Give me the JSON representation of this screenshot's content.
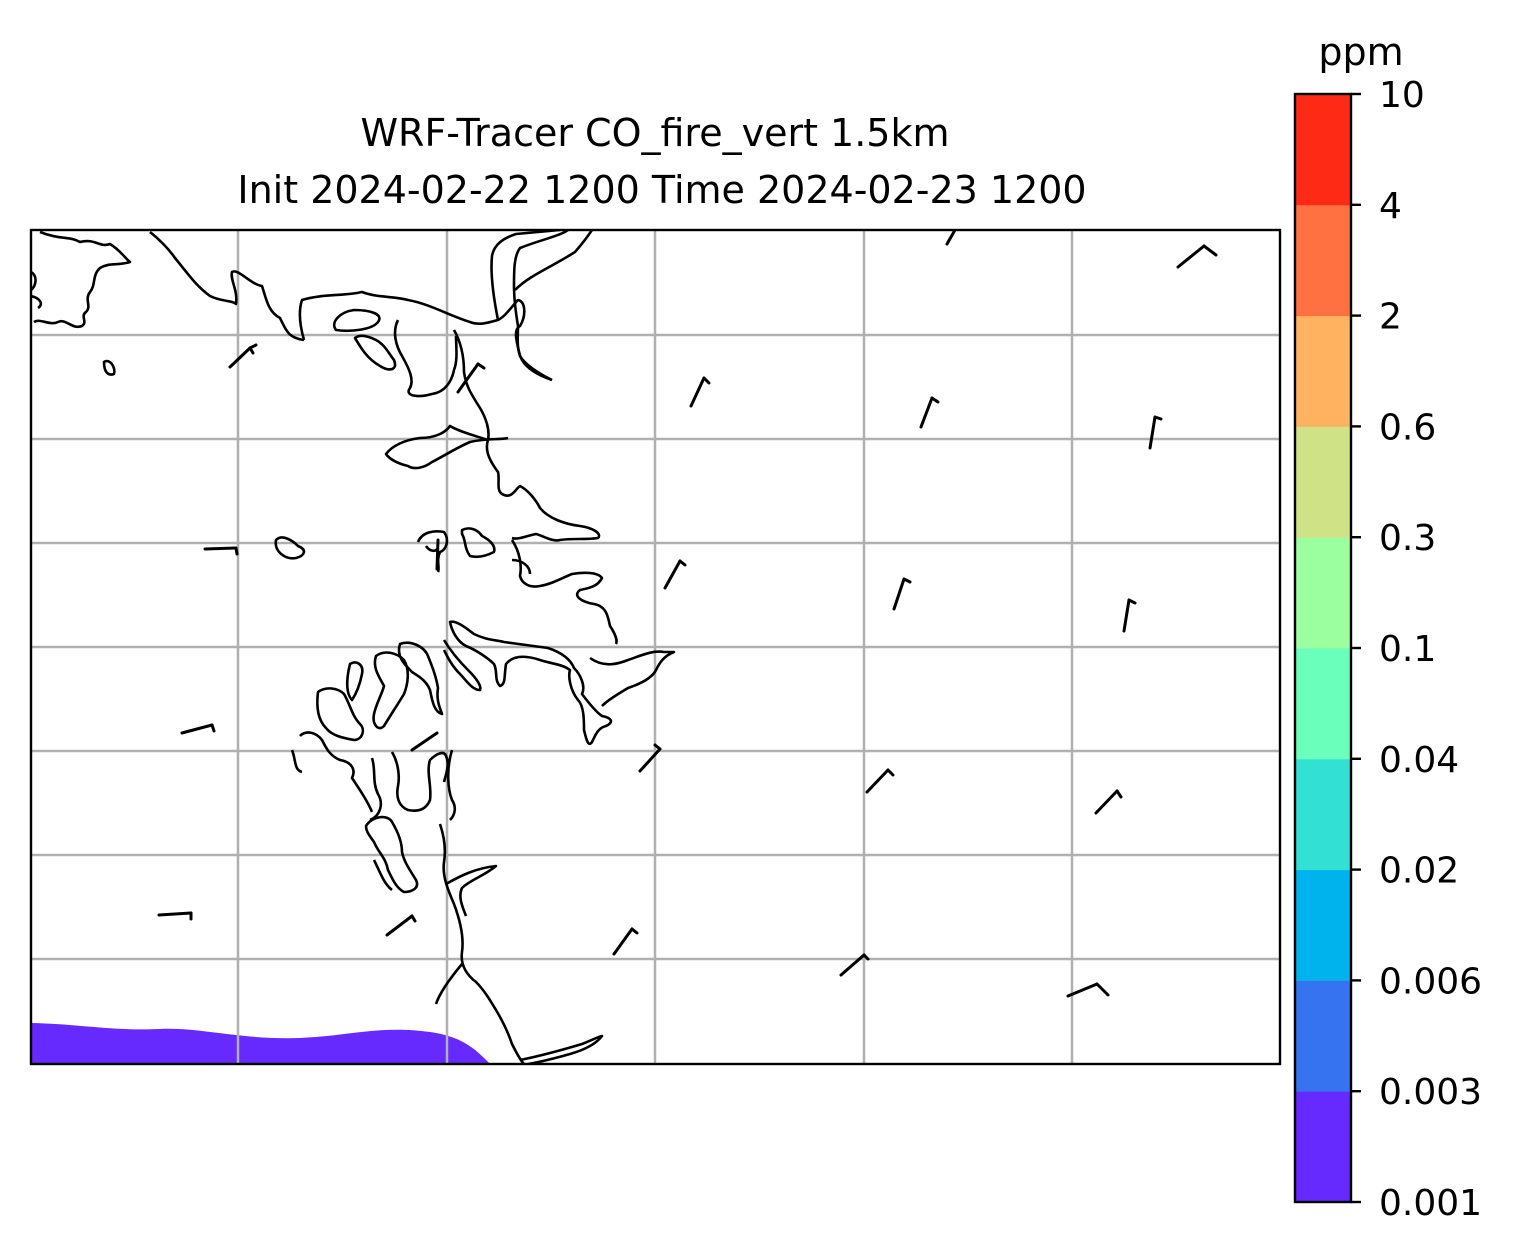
{
  "title": {
    "line1": "WRF-Tracer CO_fire_vert 1.5km",
    "line2": "Init 2024-02-22 1200 Time 2024-02-23 1200"
  },
  "colorbar": {
    "unit": "ppm",
    "levels": [
      "0.001",
      "0.003",
      "0.006",
      "0.02",
      "0.04",
      "0.1",
      "0.3",
      "0.6",
      "2",
      "4",
      "10"
    ],
    "colors": [
      "#6629fe",
      "#3573f1",
      "#01b3ec",
      "#33e1d4",
      "#6bffbc",
      "#9cff9f",
      "#cfe285",
      "#ffb360",
      "#ff7141",
      "#ff2a16"
    ]
  },
  "map": {
    "gridlines": true,
    "gridline_color": "#b0b0b0",
    "coastline_color": "#000000",
    "tracer_fill_color": "#6629fe",
    "tracer_level": "0.001–0.003 ppm"
  }
}
